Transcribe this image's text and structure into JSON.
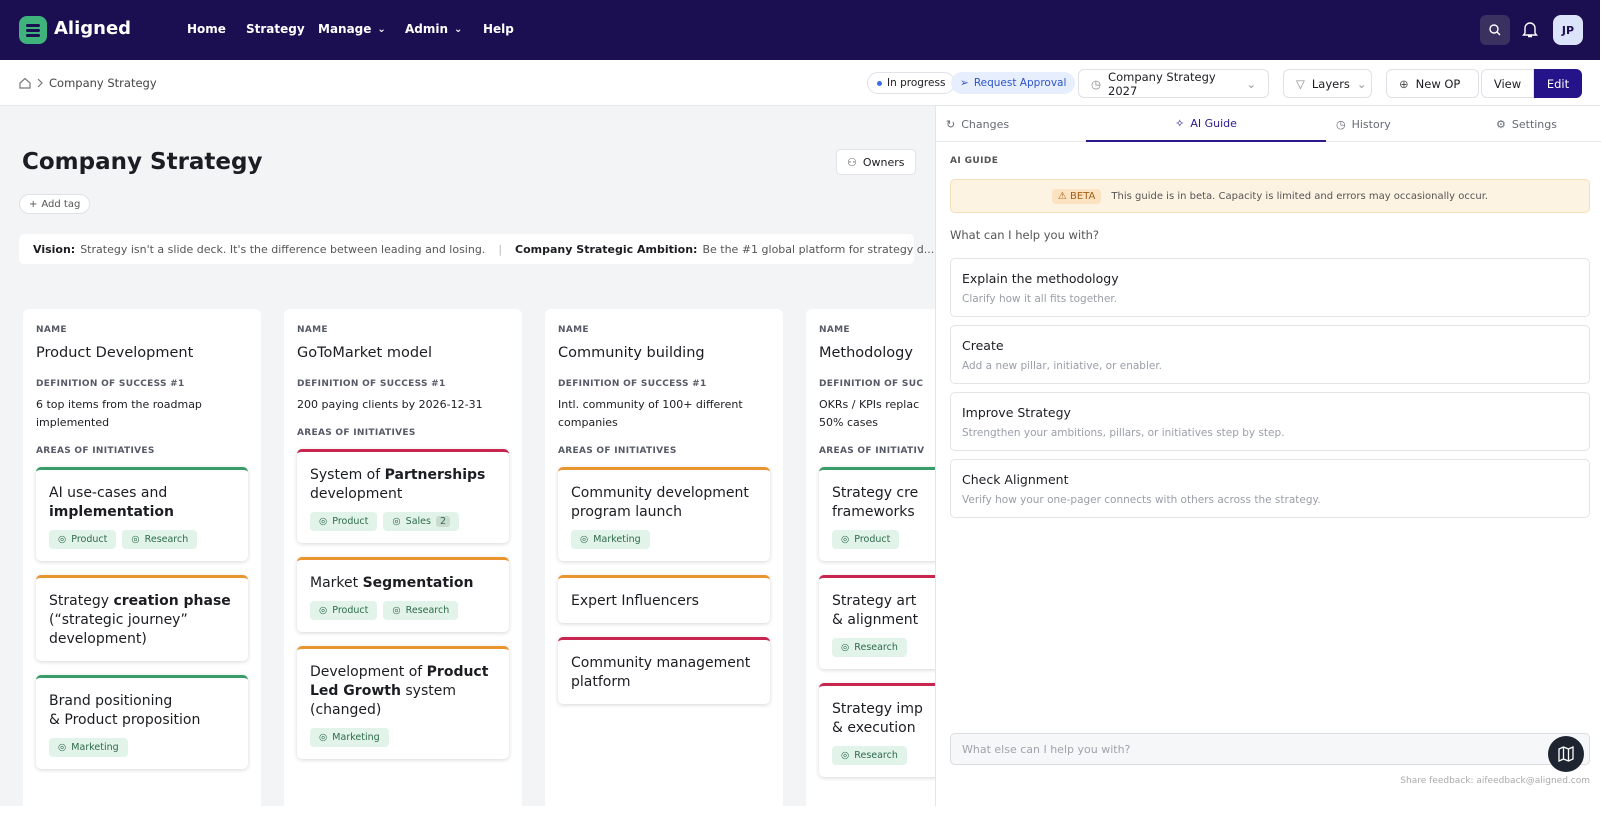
{
  "nav": {
    "logo": "Aligned",
    "items": [
      {
        "label": "Home"
      },
      {
        "label": "Strategy"
      },
      {
        "label": "Manage",
        "dropdown": true
      },
      {
        "label": "Admin",
        "dropdown": true
      },
      {
        "label": "Help"
      }
    ],
    "avatar": "JP"
  },
  "toolbar": {
    "breadcrumb": "Company Strategy",
    "status": "In progress",
    "request": "Request Approval",
    "version": "Company Strategy 2027",
    "layers": "Layers",
    "new_op": "New OP",
    "view": "View",
    "edit": "Edit"
  },
  "page": {
    "title": "Company Strategy",
    "owners": "Owners",
    "add_tag": "Add tag",
    "vision_label": "Vision:",
    "vision": "Strategy isn't a slide deck. It's the difference between leading and losing.",
    "ambition_label": "Company Strategic Ambition:",
    "ambition": "Be the #1 global platform for strategy d..."
  },
  "pillars": [
    {
      "name_label": "NAME",
      "name": "Product Development",
      "dos_label": "DEFINITION OF SUCCESS #1",
      "dos": "6 top items from the roadmap implemented",
      "areas_label": "AREAS OF INITIATIVES",
      "initiatives": [
        {
          "color": "#3a9b6b",
          "title": [
            {
              "text": "AI use-cases and "
            },
            {
              "text": "implementation",
              "bold": true
            }
          ],
          "tags": [
            {
              "label": "Product"
            },
            {
              "label": "Research"
            }
          ]
        },
        {
          "color": "#e8952f",
          "title": [
            {
              "text": "Strategy "
            },
            {
              "text": "creation phase",
              "bold": true
            },
            {
              "text": " (“strategic journey” development)"
            }
          ],
          "tags": []
        },
        {
          "color": "#3a9b6b",
          "title": [
            {
              "text": "Brand positioning\n& Product proposition"
            }
          ],
          "tags": [
            {
              "label": "Marketing"
            }
          ]
        }
      ]
    },
    {
      "name_label": "NAME",
      "name": "GoToMarket model",
      "dos_label": "DEFINITION OF SUCCESS #1",
      "dos": "200 paying clients by 2026-12-31",
      "areas_label": "AREAS OF INITIATIVES",
      "initiatives": [
        {
          "color": "#c8264f",
          "title": [
            {
              "text": "System of "
            },
            {
              "text": "Partnerships",
              "bold": true
            },
            {
              "text": " development"
            }
          ],
          "tags": [
            {
              "label": "Product"
            },
            {
              "label": "Sales",
              "count": 2
            }
          ]
        },
        {
          "color": "#e8952f",
          "title": [
            {
              "text": "Market "
            },
            {
              "text": "Segmentation",
              "bold": true
            }
          ],
          "tags": [
            {
              "label": "Product"
            },
            {
              "label": "Research"
            }
          ]
        },
        {
          "color": "#e8952f",
          "title": [
            {
              "text": "Development of "
            },
            {
              "text": "Product Led Growth",
              "bold": true
            },
            {
              "text": " system (changed)"
            }
          ],
          "tags": [
            {
              "label": "Marketing"
            }
          ]
        }
      ]
    },
    {
      "name_label": "NAME",
      "name": "Community building",
      "dos_label": "DEFINITION OF SUCCESS #1",
      "dos": "Intl. community of 100+ different companies",
      "areas_label": "AREAS OF INITIATIVES",
      "initiatives": [
        {
          "color": "#e8952f",
          "title": [
            {
              "text": "Community development program launch"
            }
          ],
          "tags": [
            {
              "label": "Marketing"
            }
          ]
        },
        {
          "color": "#e8952f",
          "title": [
            {
              "text": "Expert Influencers"
            }
          ],
          "tags": []
        },
        {
          "color": "#c8264f",
          "title": [
            {
              "text": "Community management platform"
            }
          ],
          "tags": []
        }
      ]
    },
    {
      "name_label": "NAME",
      "name": "Methodology",
      "dos_label": "DEFINITION OF SUC",
      "dos": "OKRs / KPIs replac\n50% cases",
      "areas_label": "AREAS OF INITIATIV",
      "initiatives": [
        {
          "color": "#3a9b6b",
          "title": [
            {
              "text": "Strategy cre\nframeworks"
            }
          ],
          "tags": [
            {
              "label": "Product"
            }
          ]
        },
        {
          "color": "#c8264f",
          "title": [
            {
              "text": "Strategy art\n& alignment"
            }
          ],
          "tags": [
            {
              "label": "Research"
            }
          ]
        },
        {
          "color": "#c8264f",
          "title": [
            {
              "text": "Strategy imp\n& execution"
            }
          ],
          "tags": [
            {
              "label": "Research"
            }
          ]
        }
      ]
    }
  ],
  "panel": {
    "tabs": [
      {
        "label": "Changes"
      },
      {
        "label": "AI Guide",
        "active": true
      },
      {
        "label": "History"
      },
      {
        "label": "Settings"
      }
    ],
    "section": "AI GUIDE",
    "beta": "BETA",
    "beta_text": "This guide is in beta. Capacity is limited and errors may occasionally occur.",
    "prompt": "What can I help you with?",
    "options": [
      {
        "title": "Explain the methodology",
        "desc": "Clarify how it all fits together."
      },
      {
        "title": "Create",
        "desc": "Add a new pillar, initiative, or enabler."
      },
      {
        "title": "Improve Strategy",
        "desc": "Strengthen your ambitions, pillars, or initiatives step by step."
      },
      {
        "title": "Check Alignment",
        "desc": "Verify how your one-pager connects with others across the strategy."
      }
    ],
    "placeholder": "What else can I help you with?",
    "feedback": "Share feedback: aifeedback@aligned.com"
  }
}
